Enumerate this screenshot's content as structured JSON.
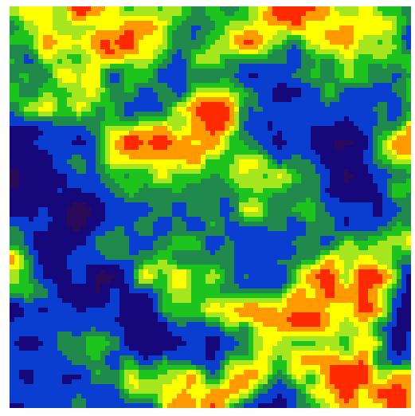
{
  "palette": [
    "#2b0a5a",
    "#16087a",
    "#0a3ed0",
    "#1f8a4c",
    "#1ec41e",
    "#a6e61e",
    "#ffff00",
    "#ff9a00",
    "#ff2a00"
  ]
}
